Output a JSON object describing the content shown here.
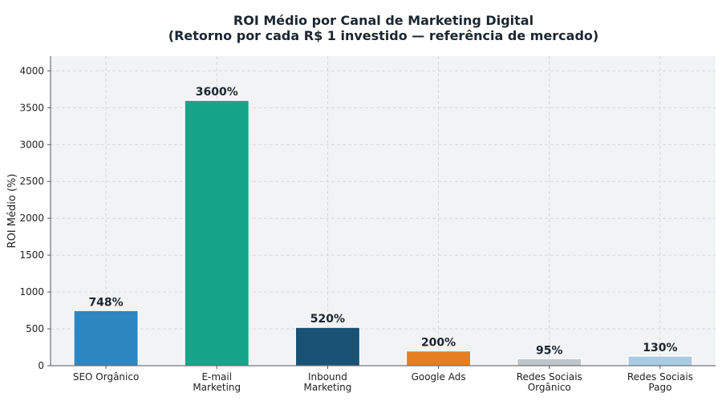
{
  "chart_data": {
    "type": "bar",
    "title_line1": "ROI Médio por Canal de Marketing Digital",
    "title_line2": "(Retorno por cada R$ 1 investido — referência de mercado)",
    "ylabel": "ROI Médio (%)",
    "xlabel": "",
    "ylim": [
      0,
      4200
    ],
    "yticks": [
      0,
      500,
      1000,
      1500,
      2000,
      2500,
      3000,
      3500,
      4000
    ],
    "grid": true,
    "categories": [
      [
        "SEO Orgânico"
      ],
      [
        "E-mail",
        "Marketing"
      ],
      [
        "Inbound",
        "Marketing"
      ],
      [
        "Google Ads"
      ],
      [
        "Redes Sociais",
        "Orgânico"
      ],
      [
        "Redes Sociais",
        "Pago"
      ]
    ],
    "values": [
      748,
      3600,
      520,
      200,
      95,
      130
    ],
    "data_labels": [
      "748%",
      "3600%",
      "520%",
      "200%",
      "95%",
      "130%"
    ],
    "colors": [
      "#2e86c1",
      "#17a589",
      "#1a5276",
      "#e67e22",
      "#bfc5c9",
      "#a9cce3"
    ],
    "plot_background": "#f2f3f4"
  }
}
